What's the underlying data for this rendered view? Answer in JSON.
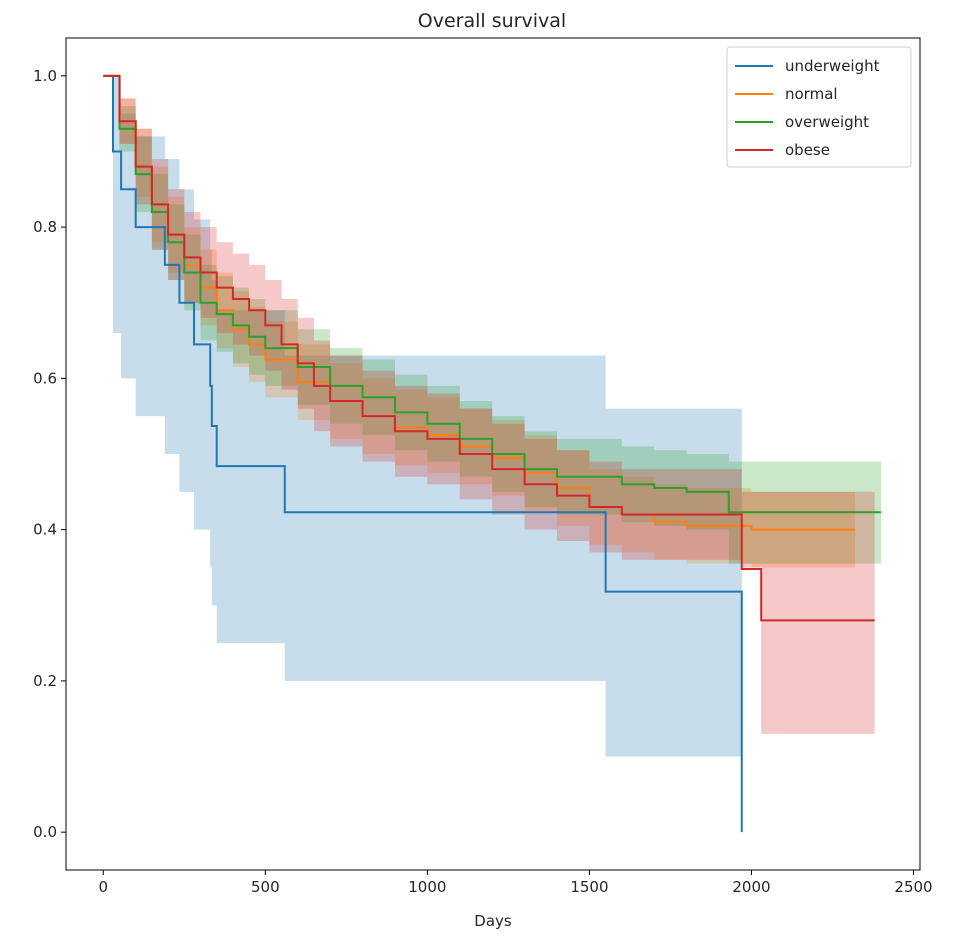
{
  "chart_data": {
    "type": "line",
    "title": "Overall survival",
    "xlabel": "Days",
    "ylabel": "",
    "xlim": [
      -115,
      2520
    ],
    "ylim": [
      -0.05,
      1.05
    ],
    "xticks": [
      0,
      500,
      1000,
      1500,
      2000,
      2500
    ],
    "xtick_labels": [
      "0",
      "500",
      "1000",
      "1500",
      "2000",
      "2500"
    ],
    "yticks": [
      0.0,
      0.2,
      0.4,
      0.6,
      0.8,
      1.0
    ],
    "ytick_labels": [
      "0.0",
      "0.2",
      "0.4",
      "0.6",
      "0.8",
      "1.0"
    ],
    "grid": false,
    "legend_position": "top-right",
    "step": true,
    "series": [
      {
        "name": "underweight",
        "color": "#1f77b4",
        "x": [
          0,
          30,
          30,
          55,
          100,
          190,
          235,
          280,
          330,
          335,
          350,
          560,
          1550,
          1550,
          1970,
          1970
        ],
        "y": [
          1.0,
          1.0,
          0.9,
          0.85,
          0.8,
          0.75,
          0.7,
          0.645,
          0.59,
          0.537,
          0.484,
          0.423,
          0.423,
          0.318,
          0.318,
          0.0
        ],
        "ci_upper": [
          1.0,
          1.0,
          1.0,
          0.95,
          0.92,
          0.89,
          0.85,
          0.81,
          0.77,
          0.73,
          0.69,
          0.63,
          0.63,
          0.56,
          0.56,
          0.56
        ],
        "ci_lower": [
          1.0,
          1.0,
          0.66,
          0.6,
          0.55,
          0.5,
          0.45,
          0.4,
          0.35,
          0.3,
          0.25,
          0.2,
          0.2,
          0.1,
          0.1,
          0.1
        ]
      },
      {
        "name": "normal",
        "color": "#ff7f0e",
        "x": [
          0,
          50,
          100,
          150,
          200,
          250,
          300,
          350,
          400,
          450,
          500,
          600,
          700,
          800,
          900,
          1000,
          1100,
          1200,
          1300,
          1400,
          1500,
          1600,
          1700,
          1800,
          2000,
          2320
        ],
        "y": [
          1.0,
          0.94,
          0.88,
          0.83,
          0.79,
          0.75,
          0.72,
          0.69,
          0.665,
          0.645,
          0.625,
          0.595,
          0.57,
          0.55,
          0.535,
          0.525,
          0.51,
          0.495,
          0.475,
          0.455,
          0.43,
          0.42,
          0.41,
          0.405,
          0.4,
          0.4
        ],
        "ci_upper": [
          1.0,
          0.97,
          0.93,
          0.88,
          0.84,
          0.8,
          0.77,
          0.74,
          0.715,
          0.695,
          0.675,
          0.645,
          0.62,
          0.6,
          0.585,
          0.575,
          0.56,
          0.545,
          0.525,
          0.505,
          0.48,
          0.47,
          0.46,
          0.455,
          0.45,
          0.45
        ],
        "ci_lower": [
          1.0,
          0.91,
          0.84,
          0.78,
          0.74,
          0.7,
          0.67,
          0.64,
          0.615,
          0.595,
          0.575,
          0.545,
          0.52,
          0.5,
          0.485,
          0.475,
          0.46,
          0.445,
          0.425,
          0.405,
          0.38,
          0.37,
          0.36,
          0.355,
          0.35,
          0.35
        ]
      },
      {
        "name": "overweight",
        "color": "#2ca02c",
        "x": [
          0,
          50,
          100,
          150,
          200,
          250,
          300,
          350,
          400,
          450,
          500,
          600,
          700,
          800,
          900,
          1000,
          1100,
          1200,
          1300,
          1400,
          1500,
          1600,
          1700,
          1800,
          1900,
          1930,
          2400
        ],
        "y": [
          1.0,
          0.93,
          0.87,
          0.82,
          0.78,
          0.74,
          0.7,
          0.685,
          0.67,
          0.655,
          0.64,
          0.615,
          0.59,
          0.575,
          0.555,
          0.54,
          0.52,
          0.5,
          0.48,
          0.47,
          0.47,
          0.46,
          0.455,
          0.45,
          0.45,
          0.423,
          0.423
        ],
        "ci_upper": [
          1.0,
          0.96,
          0.92,
          0.87,
          0.83,
          0.79,
          0.75,
          0.735,
          0.72,
          0.705,
          0.69,
          0.665,
          0.64,
          0.625,
          0.605,
          0.59,
          0.57,
          0.55,
          0.53,
          0.52,
          0.52,
          0.51,
          0.505,
          0.5,
          0.5,
          0.49,
          0.49
        ],
        "ci_lower": [
          1.0,
          0.9,
          0.82,
          0.77,
          0.73,
          0.69,
          0.65,
          0.635,
          0.62,
          0.605,
          0.59,
          0.565,
          0.54,
          0.525,
          0.505,
          0.49,
          0.47,
          0.45,
          0.43,
          0.42,
          0.42,
          0.41,
          0.405,
          0.4,
          0.4,
          0.355,
          0.355
        ]
      },
      {
        "name": "obese",
        "color": "#d62728",
        "x": [
          0,
          50,
          100,
          150,
          200,
          250,
          300,
          350,
          400,
          450,
          500,
          550,
          600,
          650,
          700,
          800,
          900,
          1000,
          1100,
          1200,
          1300,
          1400,
          1500,
          1600,
          1700,
          1800,
          1900,
          1970,
          2030,
          2380
        ],
        "y": [
          1.0,
          0.94,
          0.88,
          0.83,
          0.79,
          0.76,
          0.74,
          0.72,
          0.705,
          0.69,
          0.67,
          0.645,
          0.62,
          0.59,
          0.57,
          0.55,
          0.53,
          0.52,
          0.5,
          0.48,
          0.46,
          0.445,
          0.43,
          0.42,
          0.42,
          0.42,
          0.42,
          0.348,
          0.28,
          0.28
        ],
        "ci_upper": [
          1.0,
          0.97,
          0.93,
          0.89,
          0.85,
          0.82,
          0.8,
          0.78,
          0.765,
          0.75,
          0.73,
          0.705,
          0.68,
          0.65,
          0.63,
          0.61,
          0.59,
          0.58,
          0.56,
          0.54,
          0.52,
          0.505,
          0.49,
          0.48,
          0.48,
          0.48,
          0.48,
          0.45,
          0.45,
          0.45
        ],
        "ci_lower": [
          1.0,
          0.91,
          0.83,
          0.77,
          0.73,
          0.7,
          0.68,
          0.66,
          0.645,
          0.63,
          0.61,
          0.585,
          0.56,
          0.53,
          0.51,
          0.49,
          0.47,
          0.46,
          0.44,
          0.42,
          0.4,
          0.385,
          0.37,
          0.36,
          0.36,
          0.36,
          0.36,
          0.35,
          0.13,
          0.13
        ]
      }
    ]
  }
}
